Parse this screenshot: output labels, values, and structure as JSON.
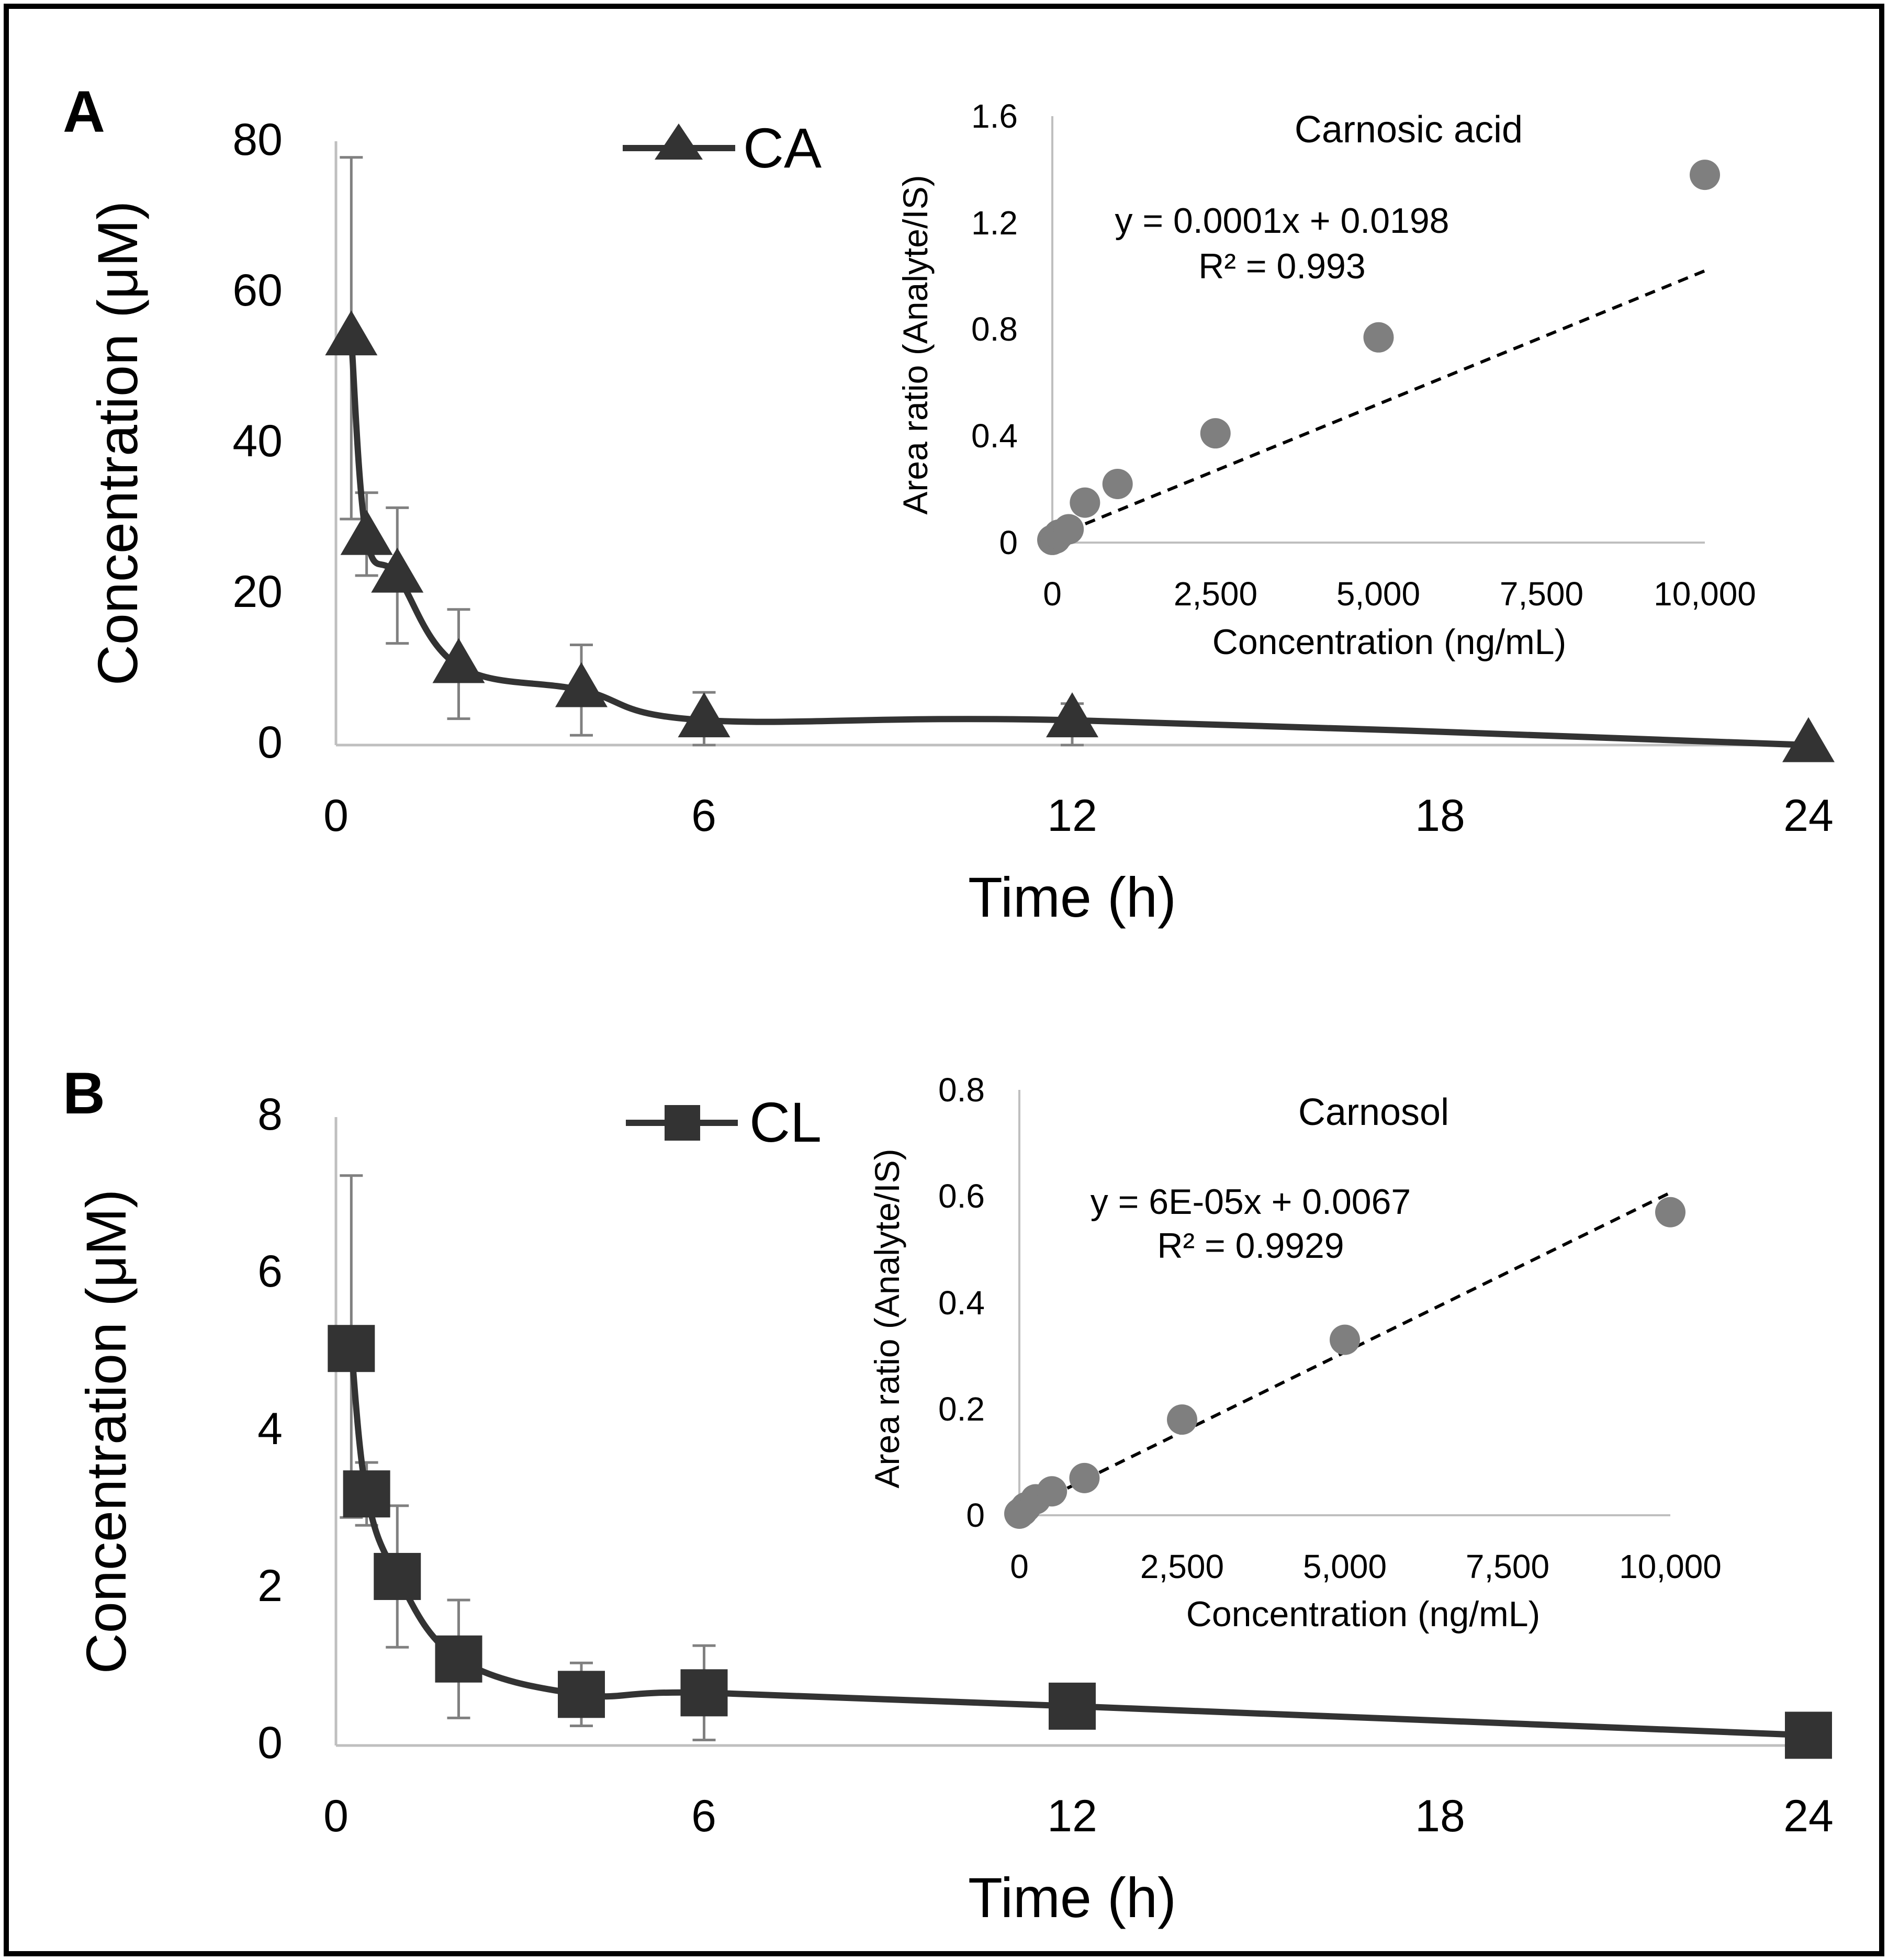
{
  "colors": {
    "series": "#333333",
    "axis": "#bfbfbf",
    "errorbar": "#808080",
    "calibration_point": "#7f7f7f",
    "fit_line": "#000000",
    "frame": "#000000"
  },
  "chart_data": [
    {
      "panel": "A",
      "type": "line",
      "xlabel": "Time (h)",
      "ylabel": "Concentration (μM)",
      "xlim": [
        0,
        24
      ],
      "ylim": [
        0,
        80
      ],
      "xticks": [
        0,
        6,
        12,
        18,
        24
      ],
      "yticks": [
        0,
        20,
        40,
        60,
        80
      ],
      "marker": "triangle",
      "legend_position": "top-center",
      "series": [
        {
          "name": "CA",
          "x": [
            0.25,
            0.5,
            1,
            2,
            4,
            6,
            12,
            24
          ],
          "y": [
            54,
            27.5,
            22.5,
            10.5,
            7.3,
            3.3,
            3.3,
            0
          ],
          "err_low": [
            24,
            5,
            9,
            7,
            6,
            3.3,
            3.3,
            0
          ],
          "err_high": [
            24,
            6,
            9,
            7.5,
            6,
            3.7,
            2.2,
            0
          ]
        }
      ],
      "inset": {
        "type": "scatter",
        "title": "Carnosic acid",
        "xlabel": "Concentration (ng/mL)",
        "ylabel": "Area ratio (Analyte/IS)",
        "xlim": [
          0,
          10000
        ],
        "ylim": [
          0,
          1.6
        ],
        "xticks": [
          0,
          2500,
          5000,
          7500,
          10000
        ],
        "xtick_labels": [
          "0",
          "2,500",
          "5,000",
          "7,500",
          "10,000"
        ],
        "yticks": [
          0,
          0.4,
          0.8,
          1.2,
          1.6
        ],
        "ytick_labels": [
          "0",
          "0.4",
          "0.8",
          "1.2",
          "1.6"
        ],
        "x": [
          0,
          50,
          100,
          250,
          500,
          1000,
          2500,
          5000,
          10000
        ],
        "y": [
          0.01,
          0.015,
          0.03,
          0.05,
          0.15,
          0.22,
          0.41,
          0.77,
          1.38
        ],
        "fit": {
          "slope": 0.0001,
          "intercept": 0.0198
        },
        "equation": "y = 0.0001x + 0.0198",
        "r2": "R² = 0.993"
      }
    },
    {
      "panel": "B",
      "type": "line",
      "xlabel": "Time (h)",
      "ylabel": "Concentration (μM)",
      "xlim": [
        0,
        24
      ],
      "ylim": [
        0,
        8
      ],
      "xticks": [
        0,
        6,
        12,
        18,
        24
      ],
      "yticks": [
        0,
        2,
        4,
        6,
        8
      ],
      "marker": "square",
      "legend_position": "top-center",
      "series": [
        {
          "name": "CL",
          "x": [
            0.25,
            0.5,
            1,
            2,
            4,
            6,
            12,
            24
          ],
          "y": [
            5.05,
            3.2,
            2.15,
            1.1,
            0.65,
            0.67,
            0.5,
            0.13
          ],
          "err_low": [
            2.15,
            0.4,
            0.9,
            0.75,
            0.4,
            0.6,
            0,
            0
          ],
          "err_high": [
            2.2,
            0.4,
            0.9,
            0.75,
            0.4,
            0.6,
            0,
            0
          ]
        }
      ],
      "inset": {
        "type": "scatter",
        "title": "Carnosol",
        "xlabel": "Concentration (ng/mL)",
        "ylabel": "Area ratio (Analyte/IS)",
        "xlim": [
          0,
          10000
        ],
        "ylim": [
          0,
          0.8
        ],
        "xticks": [
          0,
          2500,
          5000,
          7500,
          10000
        ],
        "xtick_labels": [
          "0",
          "2,500",
          "5,000",
          "7,500",
          "10,000"
        ],
        "yticks": [
          0,
          0.2,
          0.4,
          0.6,
          0.8
        ],
        "ytick_labels": [
          "0",
          "0.2",
          "0.4",
          "0.6",
          "0.8"
        ],
        "x": [
          0,
          50,
          100,
          250,
          500,
          1000,
          2500,
          5000,
          10000
        ],
        "y": [
          0.003,
          0.008,
          0.015,
          0.03,
          0.045,
          0.07,
          0.18,
          0.33,
          0.57
        ],
        "fit": {
          "slope": 6e-05,
          "intercept": 0.0067
        },
        "equation": "y = 6E-05x + 0.0067",
        "r2": "R² = 0.9929"
      }
    }
  ]
}
